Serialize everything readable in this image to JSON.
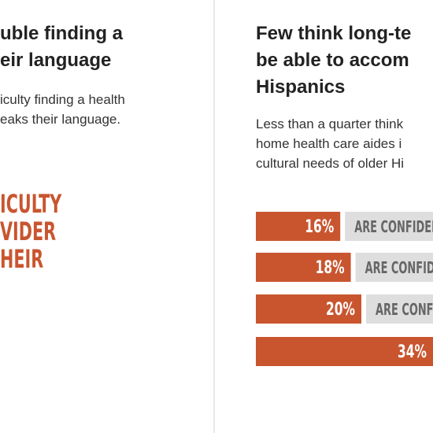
{
  "left": {
    "title": [
      "uble finding a",
      "eir language"
    ],
    "body": [
      "iculty finding a health",
      "eaks their language."
    ],
    "callout": [
      "ICULTY",
      "VIDER",
      "HEIR"
    ]
  },
  "right": {
    "title": [
      "Few think long-te",
      "be able to accom",
      "Hispanics"
    ],
    "body": [
      "Less than a quarter think",
      "home health care aides i",
      "cultural needs of older Hi"
    ],
    "bars": {
      "values": [
        16,
        18,
        20,
        34
      ],
      "value_labels": [
        "16%",
        "18%",
        "20%",
        "34%"
      ],
      "notes": [
        "ARE CONFIDEN",
        "ARE CONFID",
        "ARE CONFI",
        null
      ]
    }
  }
}
